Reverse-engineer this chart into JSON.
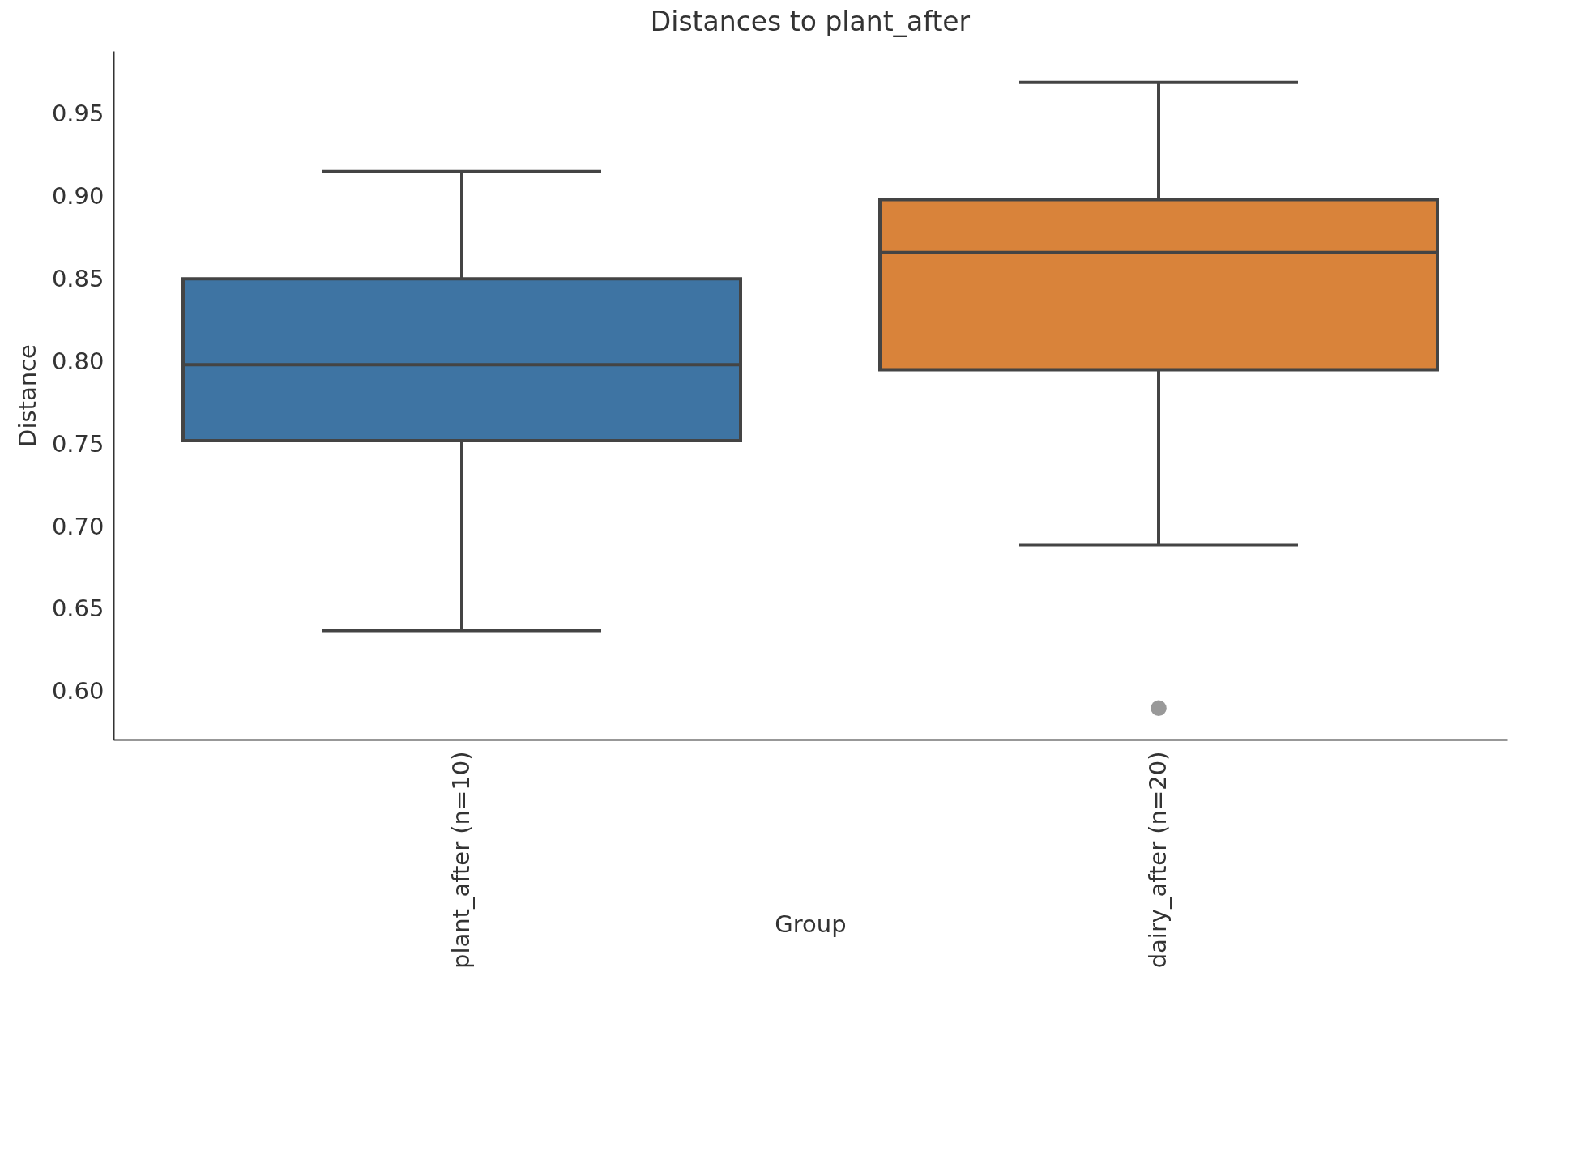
{
  "chart_data": {
    "type": "box",
    "title": "Distances to plant_after",
    "xlabel": "Group",
    "ylabel": "Distance",
    "categories": [
      "plant_after (n=10)",
      "dairy_after (n=20)"
    ],
    "colors": [
      "#3e74a3",
      "#d9833a"
    ],
    "boxes": [
      {
        "low": 0.637,
        "q1": 0.752,
        "median": 0.798,
        "q3": 0.85,
        "high": 0.915
      },
      {
        "low": 0.689,
        "q1": 0.795,
        "median": 0.866,
        "q3": 0.898,
        "high": 0.969,
        "outliers": [
          0.59
        ]
      }
    ],
    "ylim": [
      0.571,
      0.988
    ],
    "yticks": [
      {
        "value": 0.6,
        "label": "0.60"
      },
      0.65,
      {
        "value": 0.7,
        "label": "0.70"
      },
      0.75,
      {
        "value": 0.8,
        "label": "0.80"
      },
      0.85,
      {
        "value": 0.9,
        "label": "0.90"
      },
      0.95
    ],
    "grid": false
  }
}
